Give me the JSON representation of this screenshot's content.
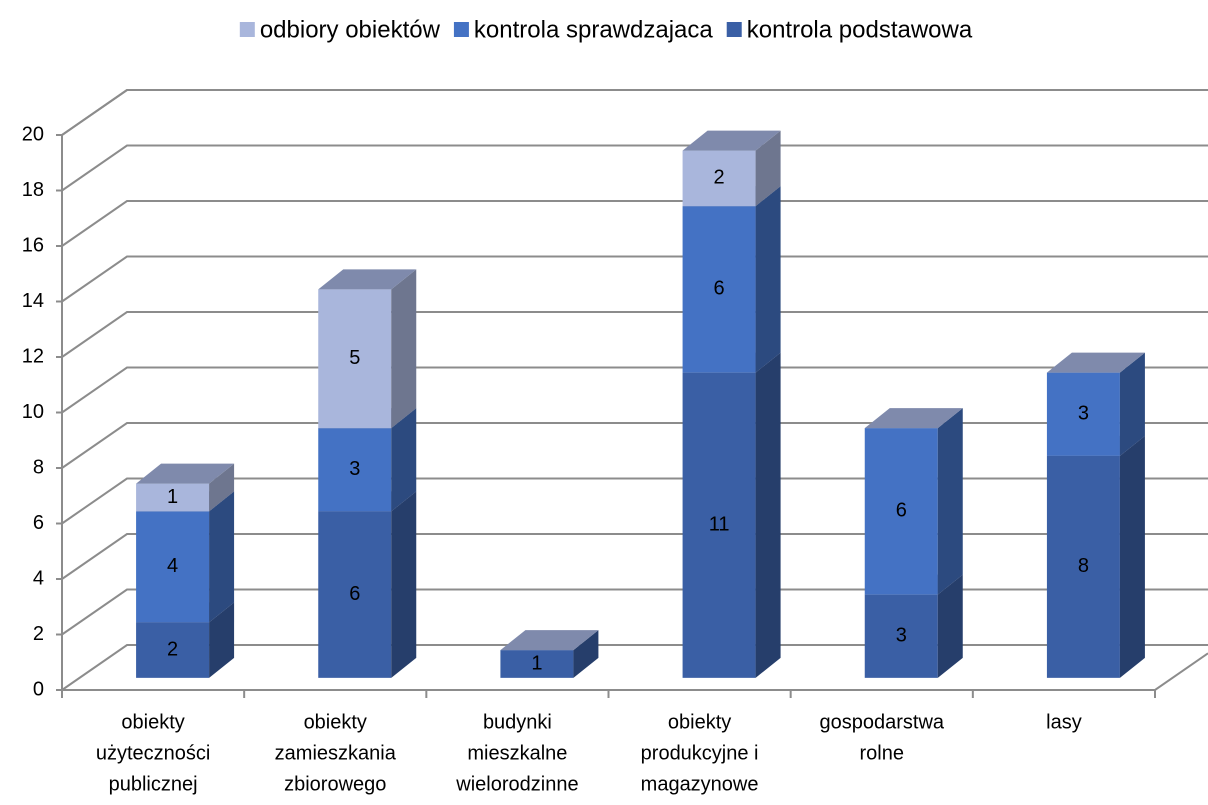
{
  "chart_data": {
    "type": "bar3d_stacked",
    "categories": [
      [
        "obiekty",
        "użyteczności",
        "publicznej"
      ],
      [
        "obiekty",
        "zamieszkania",
        "zbiorowego"
      ],
      [
        "budynki",
        "mieszkalne",
        "wielorodzinne"
      ],
      [
        "obiekty",
        "produkcyjne i",
        "magazynowe"
      ],
      [
        "gospodarstwa",
        "rolne"
      ],
      [
        "lasy"
      ]
    ],
    "series": [
      {
        "name": "kontrola podstawowa",
        "color": "#3a5fa5",
        "values": [
          2,
          6,
          1,
          11,
          3,
          8
        ]
      },
      {
        "name": "kontrola sprawdzajaca",
        "color": "#4472c4",
        "values": [
          4,
          3,
          null,
          6,
          6,
          3
        ]
      },
      {
        "name": "odbiory obiektów",
        "color": "#a9b6dc",
        "values": [
          1,
          5,
          null,
          2,
          null,
          null
        ]
      }
    ],
    "legend_order": "reverse",
    "legend_position": "top",
    "ylim": [
      0,
      20
    ],
    "yticks": [
      0,
      2,
      4,
      6,
      8,
      10,
      12,
      14,
      16,
      18,
      20
    ],
    "grid": true
  }
}
